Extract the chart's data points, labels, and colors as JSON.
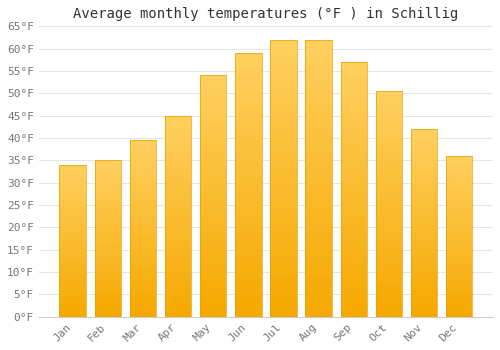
{
  "title": "Average monthly temperatures (°F ) in Schillig",
  "months": [
    "Jan",
    "Feb",
    "Mar",
    "Apr",
    "May",
    "Jun",
    "Jul",
    "Aug",
    "Sep",
    "Oct",
    "Nov",
    "Dec"
  ],
  "values": [
    34,
    35,
    39.5,
    45,
    54,
    59,
    62,
    62,
    57,
    50.5,
    42,
    36
  ],
  "bar_color_top": "#FFD060",
  "bar_color_bottom": "#F5A800",
  "bar_edge_color": "#E8A000",
  "background_color": "#FFFFFF",
  "grid_color": "#E0E0E0",
  "ylim": [
    0,
    65
  ],
  "yticks": [
    0,
    5,
    10,
    15,
    20,
    25,
    30,
    35,
    40,
    45,
    50,
    55,
    60,
    65
  ],
  "title_fontsize": 10,
  "tick_fontsize": 8,
  "title_color": "#333333",
  "tick_color": "#777777",
  "spine_color": "#CCCCCC"
}
